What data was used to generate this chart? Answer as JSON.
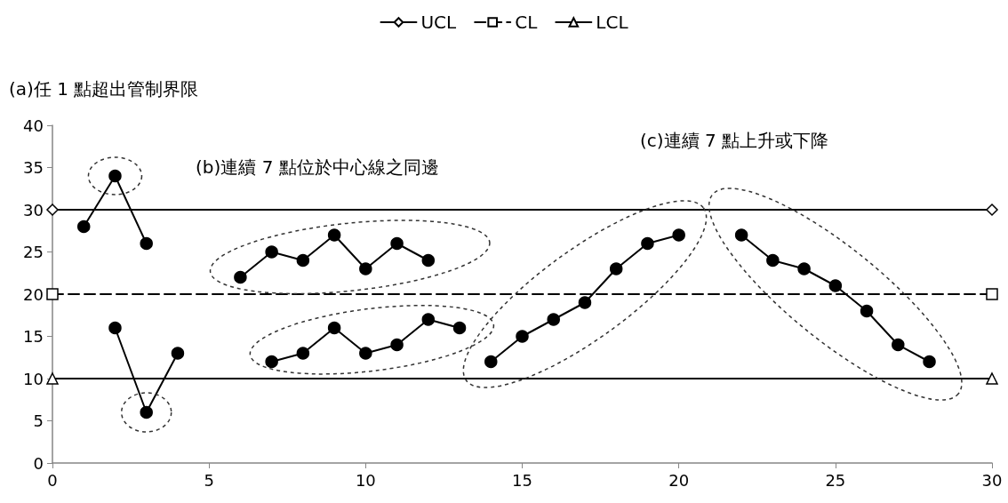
{
  "chart_data": {
    "type": "line",
    "annotations": [
      "(a)任 1 點超出管制界限",
      "(b)連續 7 點位於中心線之同邊",
      "(c)連續 7 點上升或下降"
    ],
    "xlim": [
      0,
      30
    ],
    "xticks": [
      0,
      5,
      10,
      15,
      20,
      25,
      30
    ],
    "ylim": [
      0,
      40
    ],
    "yticks": [
      0,
      5,
      10,
      15,
      20,
      25,
      30,
      35,
      40
    ],
    "grid": false,
    "legend": "top",
    "series": [
      {
        "name": "UCL",
        "color": "#000000",
        "x": [
          0,
          30
        ],
        "values": [
          30,
          30
        ],
        "marker": "diamond",
        "line_style": "solid"
      },
      {
        "name": "CL",
        "color": "#000000",
        "x": [
          0,
          30
        ],
        "values": [
          20,
          20
        ],
        "marker": "square",
        "line_style": "dashed"
      },
      {
        "name": "LCL",
        "color": "#000000",
        "x": [
          0,
          30
        ],
        "values": [
          10,
          10
        ],
        "marker": "triangle",
        "line_style": "solid"
      },
      {
        "color": "#000000",
        "x": [
          1,
          2,
          3
        ],
        "values": [
          28,
          34,
          26
        ],
        "marker": "circle",
        "line_style": "solid"
      },
      {
        "color": "#000000",
        "x": [
          2,
          3,
          4
        ],
        "values": [
          16,
          6,
          13
        ],
        "marker": "circle",
        "line_style": "solid"
      },
      {
        "color": "#000000",
        "x": [
          6,
          7,
          8,
          9,
          10,
          11,
          12
        ],
        "values": [
          22,
          25,
          24,
          27,
          23,
          26,
          24
        ],
        "marker": "circle",
        "line_style": "solid"
      },
      {
        "color": "#000000",
        "x": [
          7,
          8,
          9,
          10,
          11,
          12,
          13
        ],
        "values": [
          12,
          13,
          16,
          13,
          14,
          17,
          16
        ],
        "marker": "circle",
        "line_style": "solid"
      },
      {
        "color": "#000000",
        "x": [
          14,
          15,
          16,
          17,
          18,
          19,
          20
        ],
        "values": [
          12,
          15,
          17,
          19,
          23,
          26,
          27
        ],
        "marker": "circle",
        "line_style": "solid"
      },
      {
        "color": "#000000",
        "x": [
          22,
          23,
          24,
          25,
          26,
          27,
          28
        ],
        "values": [
          27,
          24,
          23,
          21,
          18,
          14,
          12
        ],
        "marker": "circle",
        "line_style": "solid"
      }
    ]
  }
}
